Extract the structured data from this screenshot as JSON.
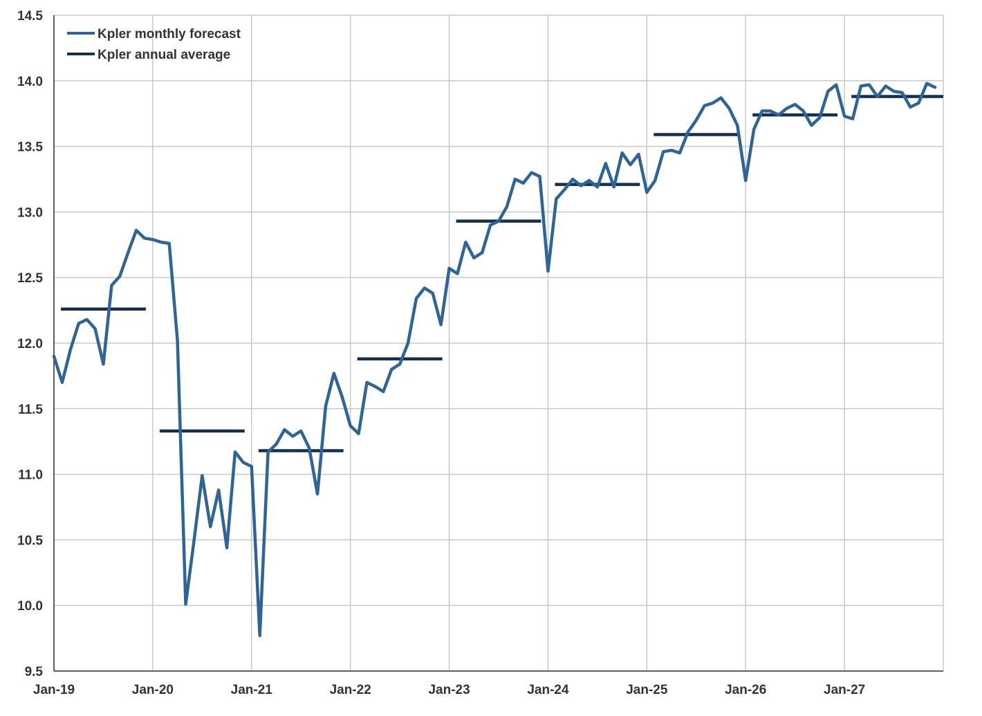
{
  "chart_data": {
    "type": "line",
    "title": "",
    "xlabel": "",
    "ylabel": "",
    "ylim": [
      9.5,
      14.5
    ],
    "xlim": [
      "2019-01",
      "2027-12"
    ],
    "y_ticks": [
      "9.5",
      "10.0",
      "10.5",
      "11.0",
      "11.5",
      "12.0",
      "12.5",
      "13.0",
      "13.5",
      "14.0",
      "14.5"
    ],
    "y_tick_values": [
      9.5,
      10.0,
      10.5,
      11.0,
      11.5,
      12.0,
      12.5,
      13.0,
      13.5,
      14.0,
      14.5
    ],
    "x_ticks": [
      "Jan-19",
      "Jan-20",
      "Jan-21",
      "Jan-22",
      "Jan-23",
      "Jan-24",
      "Jan-25",
      "Jan-26",
      "Jan-27"
    ],
    "x_tick_dates": [
      "2019-01",
      "2020-01",
      "2021-01",
      "2022-01",
      "2023-01",
      "2024-01",
      "2025-01",
      "2026-01",
      "2027-01"
    ],
    "grid": true,
    "legend_position": "top-left",
    "colors": {
      "monthly": "#2e6496",
      "annual": "#13304f",
      "grid": "#c8c8c8",
      "axis": "#333333"
    },
    "series": [
      {
        "name": "Kpler monthly forecast",
        "x_start": "2019-01",
        "frequency": "monthly",
        "values": [
          11.9,
          11.7,
          11.95,
          12.15,
          12.18,
          12.11,
          11.84,
          12.44,
          12.51,
          12.69,
          12.86,
          12.8,
          12.79,
          12.77,
          12.76,
          12.02,
          10.01,
          10.49,
          10.99,
          10.6,
          10.88,
          10.44,
          11.17,
          11.09,
          11.06,
          9.77,
          11.17,
          11.23,
          11.34,
          11.29,
          11.33,
          11.2,
          10.85,
          11.52,
          11.77,
          11.59,
          11.37,
          11.31,
          11.7,
          11.67,
          11.63,
          11.8,
          11.84,
          12.0,
          12.34,
          12.42,
          12.38,
          12.14,
          12.57,
          12.53,
          12.77,
          12.65,
          12.69,
          12.9,
          12.93,
          13.04,
          13.25,
          13.22,
          13.3,
          13.27,
          12.55,
          13.1,
          13.17,
          13.25,
          13.2,
          13.24,
          13.19,
          13.37,
          13.19,
          13.45,
          13.36,
          13.44,
          13.15,
          13.24,
          13.46,
          13.47,
          13.45,
          13.61,
          13.7,
          13.81,
          13.83,
          13.87,
          13.79,
          13.66,
          13.24,
          13.63,
          13.77,
          13.77,
          13.74,
          13.79,
          13.82,
          13.77,
          13.66,
          13.72,
          13.92,
          13.97,
          13.73,
          13.71,
          13.96,
          13.97,
          13.88,
          13.96,
          13.92,
          13.91,
          13.8,
          13.83,
          13.98,
          13.95
        ]
      },
      {
        "name": "Kpler annual average",
        "segments": [
          {
            "year": 2019,
            "value": 12.26
          },
          {
            "year": 2020,
            "value": 11.33
          },
          {
            "year": 2021,
            "value": 11.18
          },
          {
            "year": 2022,
            "value": 11.88
          },
          {
            "year": 2023,
            "value": 12.93
          },
          {
            "year": 2024,
            "value": 13.21
          },
          {
            "year": 2025,
            "value": 13.59
          },
          {
            "year": 2026,
            "value": 13.74
          },
          {
            "year": 2027,
            "value": 13.88
          }
        ]
      }
    ]
  }
}
